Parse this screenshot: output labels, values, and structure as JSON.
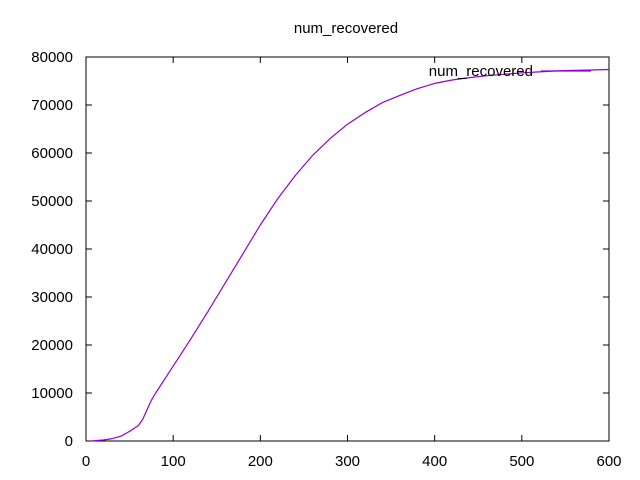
{
  "chart_data": {
    "type": "line",
    "title": "num_recovered",
    "xlabel": "",
    "ylabel": "",
    "xlim": [
      0,
      600
    ],
    "ylim": [
      0,
      80000
    ],
    "x_ticks": [
      "0",
      "100",
      "200",
      "300",
      "400",
      "500",
      "600"
    ],
    "y_ticks": [
      "0",
      "10000",
      "20000",
      "30000",
      "40000",
      "50000",
      "60000",
      "70000",
      "80000"
    ],
    "grid": false,
    "legend_position": "top-right",
    "series": [
      {
        "name": "num_recovered",
        "color": "#9400d3",
        "x": [
          6,
          20,
          30,
          40,
          50,
          60,
          65,
          70,
          75,
          80,
          90,
          100,
          110,
          120,
          140,
          160,
          180,
          200,
          220,
          240,
          260,
          280,
          300,
          320,
          340,
          360,
          380,
          400,
          420,
          440,
          460,
          480,
          500,
          520,
          540,
          560,
          580,
          600
        ],
        "y": [
          0,
          200,
          500,
          1000,
          2000,
          3200,
          4500,
          6500,
          8500,
          10000,
          12800,
          15600,
          18400,
          21200,
          27000,
          33000,
          39000,
          45000,
          50500,
          55300,
          59500,
          63000,
          66000,
          68400,
          70500,
          72000,
          73400,
          74500,
          75200,
          75700,
          76100,
          76400,
          76700,
          76900,
          77100,
          77200,
          77300,
          77400
        ]
      }
    ]
  }
}
